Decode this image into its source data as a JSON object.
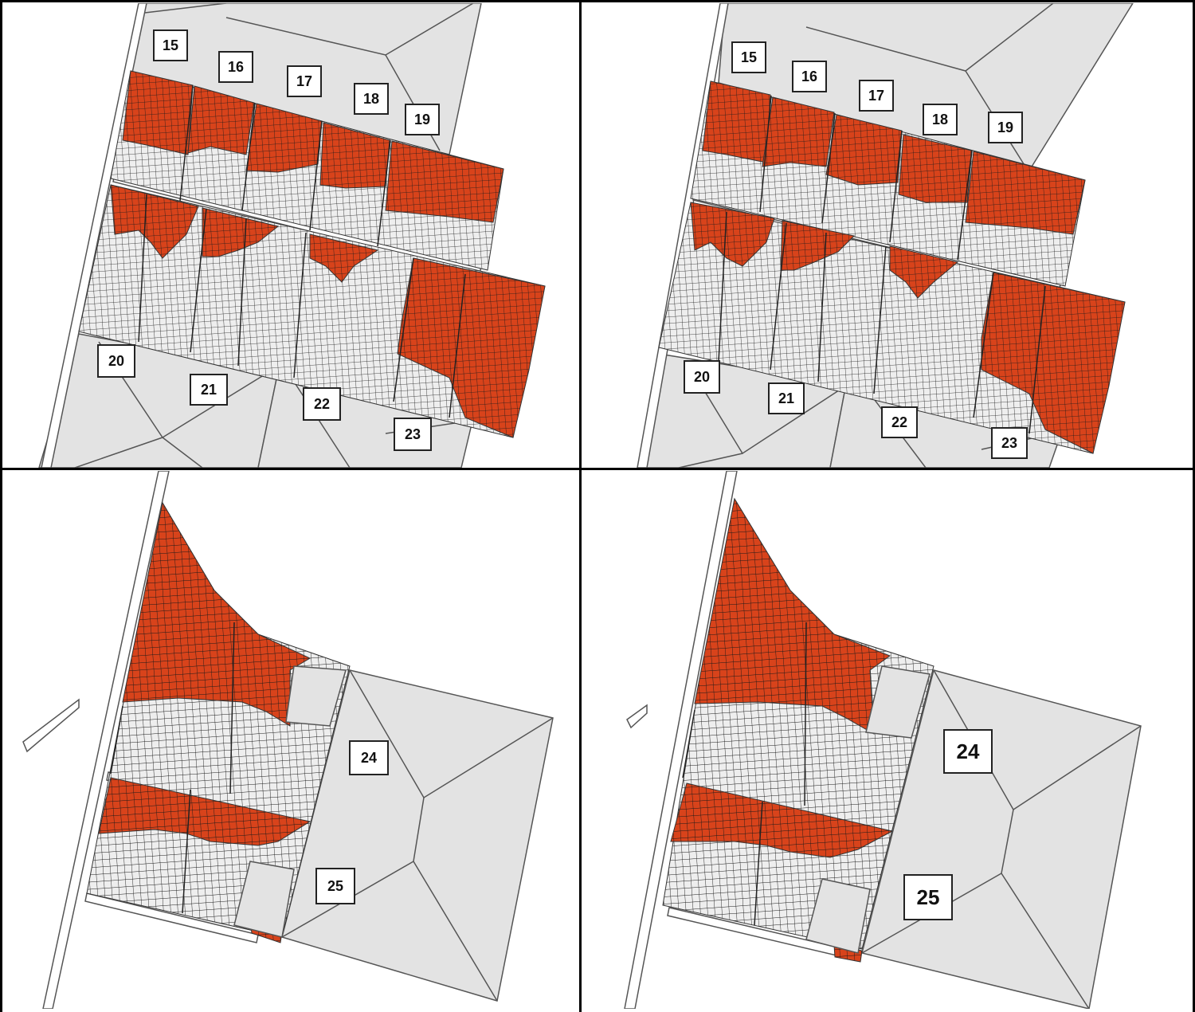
{
  "colors": {
    "roof": "#e3e3e3",
    "outline": "#555555",
    "mesh_hot": "#d8431b",
    "mesh_cool": "#eeeeee",
    "mesh_line": "#1a1a1a",
    "border": "#000000"
  },
  "panels": [
    {
      "id": "top-left",
      "labels": [
        "15",
        "16",
        "17",
        "18",
        "19",
        "20",
        "21",
        "22",
        "23"
      ]
    },
    {
      "id": "top-right",
      "labels": [
        "15",
        "16",
        "17",
        "18",
        "19",
        "20",
        "21",
        "22",
        "23"
      ]
    },
    {
      "id": "bottom-left",
      "labels": [
        "24",
        "25"
      ]
    },
    {
      "id": "bottom-right",
      "labels": [
        "24",
        "25"
      ]
    }
  ]
}
